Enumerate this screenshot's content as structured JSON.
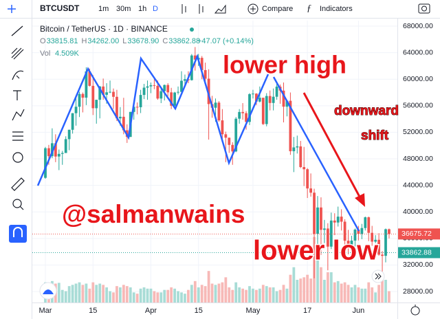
{
  "toolbar": {
    "symbol": "BTCUSDT",
    "intervals": [
      "1m",
      "30m",
      "1h",
      "D"
    ],
    "compare": "Compare",
    "indicators": "Indicators"
  },
  "legend": {
    "title": "Bitcoin / TetherUS · 1D · BINANCE",
    "ohlc": [
      {
        "label": "O",
        "value": "33815.81"
      },
      {
        "label": "H",
        "value": "34262.00"
      },
      {
        "label": "L",
        "value": "33678.90"
      },
      {
        "label": "C",
        "value": "33862.88"
      }
    ],
    "change": "+47.07 (+0.14%)",
    "volume_label": "Vol",
    "volume_value": "4.509K"
  },
  "annotations": {
    "lower_high": "lower high",
    "downward": "downward",
    "shift": "shift",
    "lower_low": "lower low",
    "author": "@salmanwains"
  },
  "chart": {
    "type": "candlestick",
    "categories": [
      "Mar",
      null,
      null,
      null,
      null,
      null,
      null,
      null,
      null,
      null,
      null,
      null,
      null,
      null,
      "15",
      null,
      null,
      null,
      null,
      null,
      null,
      null,
      null,
      null,
      null,
      null,
      null,
      null,
      null,
      null,
      null,
      "Apr",
      null,
      null,
      null,
      null,
      null,
      null,
      null,
      null,
      null,
      null,
      null,
      null,
      null,
      "15",
      null,
      null,
      null,
      null,
      null,
      null,
      null,
      null,
      null,
      null,
      null,
      null,
      null,
      null,
      null,
      "May",
      null,
      null,
      null,
      null,
      null,
      null,
      null,
      null,
      null,
      null,
      null,
      null,
      null,
      null,
      null,
      "17",
      null,
      null,
      null,
      null,
      null,
      null,
      null,
      null,
      null,
      null,
      null,
      null,
      null,
      null,
      "Jun",
      null,
      null,
      null,
      null,
      null,
      null,
      null,
      null,
      null
    ],
    "candles": {
      "open": [
        45140,
        49600,
        48400,
        50350,
        48350,
        48750,
        48880,
        50970,
        52380,
        54880,
        55850,
        57780,
        57220,
        61180,
        59000,
        55630,
        56900,
        58900,
        57650,
        58030,
        58100,
        57350,
        54100,
        54340,
        52300,
        51300,
        55070,
        55840,
        55780,
        57630,
        58730,
        58920,
        59100,
        59000,
        57090,
        58200,
        59130,
        58020,
        56000,
        57990,
        58090,
        59770,
        60000,
        59860,
        63580,
        62960,
        63220,
        61370,
        60080,
        56250,
        55700,
        56470,
        53800,
        51700,
        51190,
        50100,
        49120,
        54050,
        55060,
        54880,
        53570,
        57750,
        57830,
        56630,
        57210,
        53240,
        57470,
        56420,
        57360,
        58890,
        58280,
        55860,
        56750,
        49150,
        49720,
        49880,
        46760,
        46430,
        43540,
        42900,
        36700,
        40670,
        37300,
        37500,
        34770,
        38700,
        38400,
        39290,
        38530,
        35660,
        34650,
        35680,
        37340,
        36690,
        37570,
        39190,
        36850,
        35520,
        35800,
        33560,
        33380,
        37390
      ],
      "high": [
        49790,
        50100,
        52600,
        51700,
        49400,
        49200,
        51400,
        52400,
        54900,
        57400,
        58100,
        58000,
        61800,
        61600,
        60600,
        56900,
        58980,
        60100,
        59400,
        59800,
        58600,
        58400,
        55800,
        57200,
        53200,
        55100,
        56600,
        56500,
        58400,
        59300,
        59800,
        59500,
        60000,
        59800,
        58500,
        59200,
        59400,
        58700,
        58100,
        58900,
        61200,
        60700,
        61200,
        63800,
        64850,
        63800,
        63500,
        62500,
        61500,
        57500,
        57100,
        56700,
        55500,
        52100,
        51200,
        50500,
        54300,
        55500,
        56400,
        55200,
        57900,
        58400,
        57900,
        58900,
        57200,
        57900,
        58300,
        58600,
        59500,
        59200,
        59500,
        56900,
        58000,
        51300,
        51500,
        50700,
        49800,
        46600,
        45800,
        43500,
        42400,
        42200,
        38800,
        38300,
        39900,
        39800,
        40800,
        40400,
        38900,
        37300,
        36400,
        37500,
        37900,
        38200,
        39300,
        39300,
        37900,
        36500,
        36800,
        34100,
        37500,
        37500
      ],
      "low": [
        45000,
        47100,
        48100,
        47500,
        46300,
        47100,
        48900,
        49300,
        51800,
        53000,
        54300,
        55000,
        56100,
        58900,
        54600,
        53300,
        54100,
        56900,
        56300,
        57900,
        55500,
        53700,
        53000,
        51700,
        50400,
        51300,
        53900,
        54700,
        54900,
        57000,
        56900,
        57900,
        58500,
        56900,
        56400,
        56800,
        57400,
        55500,
        55800,
        57700,
        57900,
        59200,
        59400,
        59800,
        61300,
        62000,
        60000,
        59600,
        50900,
        54200,
        53600,
        53600,
        50500,
        47500,
        48900,
        47100,
        49000,
        53300,
        53900,
        52400,
        53100,
        57100,
        56100,
        56500,
        53100,
        52900,
        55300,
        55300,
        56900,
        56300,
        53500,
        54400,
        48600,
        46000,
        48800,
        46600,
        43900,
        42100,
        42300,
        30000,
        35000,
        33500,
        35300,
        31200,
        34400,
        36500,
        37800,
        37200,
        34700,
        33600,
        33400,
        34200,
        35700,
        35900,
        37200,
        35600,
        34900,
        35300,
        33400,
        31000,
        32400,
        36000
      ],
      "close": [
        49600,
        48400,
        50350,
        48350,
        48750,
        48880,
        50970,
        52380,
        54880,
        55850,
        57780,
        57220,
        61180,
        59000,
        55630,
        56900,
        58900,
        57650,
        58030,
        58100,
        57350,
        54100,
        54340,
        52300,
        51300,
        55070,
        55840,
        55780,
        57630,
        58730,
        58920,
        59100,
        59000,
        57090,
        58200,
        59130,
        58020,
        56000,
        57990,
        58090,
        59770,
        60000,
        59860,
        63580,
        62960,
        63220,
        61370,
        60080,
        56250,
        55700,
        56470,
        53800,
        51700,
        51190,
        50100,
        49120,
        54050,
        55060,
        54880,
        53570,
        57750,
        57830,
        56630,
        57210,
        53240,
        57470,
        56420,
        57360,
        58890,
        58280,
        55860,
        56750,
        49150,
        49720,
        49880,
        46760,
        46430,
        43540,
        42900,
        36700,
        40670,
        37300,
        37500,
        34770,
        38700,
        38400,
        39290,
        38530,
        35660,
        34650,
        35680,
        37340,
        36690,
        37570,
        39190,
        36850,
        35520,
        35800,
        33560,
        33380,
        37390,
        36675.72
      ]
    },
    "volume": [
      80,
      70,
      85,
      75,
      78,
      50,
      45,
      65,
      70,
      75,
      80,
      70,
      75,
      55,
      80,
      70,
      75,
      70,
      60,
      45,
      40,
      65,
      60,
      70,
      65,
      60,
      40,
      35,
      55,
      60,
      55,
      55,
      45,
      40,
      40,
      50,
      50,
      60,
      55,
      45,
      40,
      35,
      50,
      70,
      85,
      60,
      70,
      65,
      125,
      75,
      70,
      75,
      80,
      100,
      60,
      50,
      80,
      60,
      55,
      50,
      65,
      55,
      50,
      55,
      70,
      65,
      60,
      60,
      45,
      50,
      70,
      55,
      110,
      140,
      90,
      95,
      100,
      110,
      95,
      260,
      170,
      140,
      90,
      120,
      120,
      80,
      85,
      75,
      80,
      70,
      60,
      70,
      60,
      55,
      55,
      80,
      60,
      40,
      70,
      100,
      90,
      45
    ],
    "volume_lim": [
      0,
      300
    ],
    "ylim": [
      26350,
      68830
    ],
    "yticks": [
      {
        "value": 68000,
        "label": "68000.00"
      },
      {
        "value": 64000,
        "label": "64000.00"
      },
      {
        "value": 60000,
        "label": "60000.00"
      },
      {
        "value": 56000,
        "label": "56000.00"
      },
      {
        "value": 52000,
        "label": "52000.00"
      },
      {
        "value": 48000,
        "label": "48000.00"
      },
      {
        "value": 44000,
        "label": "44000.00"
      },
      {
        "value": 40000,
        "label": "40000.00"
      },
      {
        "value": 36000,
        "label": "36000.00"
      },
      {
        "value": 32000,
        "label": "32000.00"
      },
      {
        "value": 28000,
        "label": "28000.00"
      }
    ],
    "last_price": 36675.72,
    "close_price": 33862.88,
    "up_color": "#26a69a",
    "down_color": "#ef5350",
    "grid": true
  }
}
